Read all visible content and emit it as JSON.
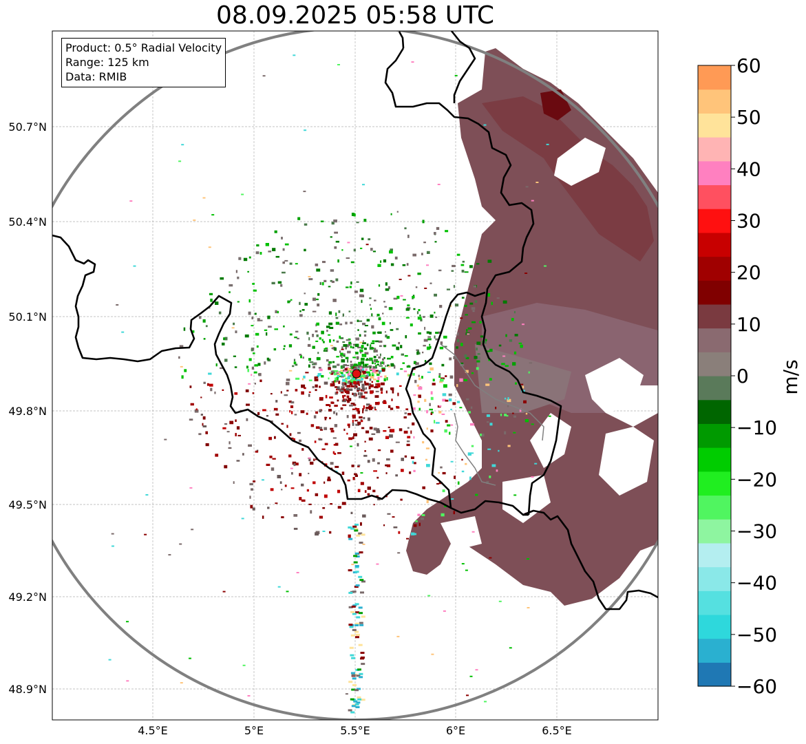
{
  "title": "08.09.2025 05:58 UTC",
  "info": {
    "product": "Product: 0.5° Radial Velocity",
    "range": "Range: 125 km",
    "data": "Data: RMIB"
  },
  "axes": {
    "lon_ticks": [
      "4.5°E",
      "5°E",
      "5.5°E",
      "6°E",
      "6.5°E"
    ],
    "lat_ticks": [
      "50.7°N",
      "50.4°N",
      "50.1°N",
      "49.8°N",
      "49.5°N",
      "49.2°N",
      "48.9°N"
    ]
  },
  "radar_site": {
    "lon": 5.505,
    "lat": 49.914
  },
  "colorbar": {
    "label": "m/s",
    "ticks": [
      "60",
      "50",
      "40",
      "30",
      "20",
      "10",
      "0",
      "−10",
      "−20",
      "−30",
      "−40",
      "−50",
      "−60"
    ],
    "min": -60,
    "max": 60,
    "colors": [
      "#1f78b4",
      "#2ab0d0",
      "#2ed8dc",
      "#55e0e0",
      "#8ae8e8",
      "#b4eef0",
      "#8ef5a0",
      "#50f560",
      "#20ee20",
      "#00cc00",
      "#009a00",
      "#006600",
      "#5a7a5a",
      "#8a7f7a",
      "#8a6a70",
      "#7a3a40",
      "#800000",
      "#a00000",
      "#c80000",
      "#ff1010",
      "#ff5060",
      "#ff80c0",
      "#ffb4b4",
      "#ffe39a",
      "#ffc47a",
      "#ff9a55"
    ]
  },
  "colors": {
    "ring": "#808080",
    "border": "#000000",
    "marker": "#e01010"
  }
}
